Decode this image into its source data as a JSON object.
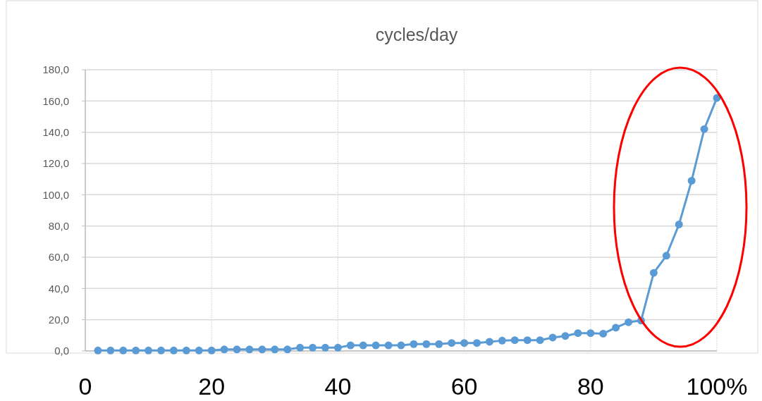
{
  "chart_data": {
    "type": "line",
    "title": "cycles/day",
    "x": [
      2,
      4,
      6,
      8,
      10,
      12,
      14,
      16,
      18,
      20,
      22,
      24,
      26,
      28,
      30,
      32,
      34,
      36,
      38,
      40,
      42,
      44,
      46,
      48,
      50,
      52,
      54,
      56,
      58,
      60,
      62,
      64,
      66,
      68,
      70,
      72,
      74,
      76,
      78,
      80,
      82,
      84,
      86,
      88,
      90,
      92,
      94,
      96,
      98,
      100
    ],
    "series": [
      {
        "color": "#5b9bd5",
        "values": [
          0.3,
          0.3,
          0.3,
          0.3,
          0.3,
          0.3,
          0.3,
          0.3,
          0.3,
          0.3,
          1.0,
          1.0,
          1.0,
          1.0,
          1.0,
          1.0,
          2.1,
          2.1,
          2.1,
          2.1,
          3.6,
          3.6,
          3.6,
          3.6,
          3.6,
          4.4,
          4.4,
          4.4,
          5.1,
          5.1,
          5.1,
          5.9,
          6.6,
          6.9,
          6.9,
          6.9,
          8.6,
          9.6,
          11.4,
          11.4,
          11.1,
          14.9,
          18.4,
          19.5,
          50,
          61,
          81,
          109,
          142,
          162
        ]
      }
    ],
    "xlim": [
      0,
      100
    ],
    "ylim": [
      0,
      180
    ],
    "xticks": [
      0,
      20,
      40,
      60,
      80,
      {
        "value": 100,
        "label": "100%"
      }
    ],
    "yticks": [
      {
        "value": 0,
        "label": "0,0"
      },
      {
        "value": 20,
        "label": "20,0"
      },
      {
        "value": 40,
        "label": "40,0"
      },
      {
        "value": 60,
        "label": "60,0"
      },
      {
        "value": 80,
        "label": "80,0"
      },
      {
        "value": 100,
        "label": "100,0"
      },
      {
        "value": 120,
        "label": "120,0"
      },
      {
        "value": 140,
        "label": "140,0"
      },
      {
        "value": 160,
        "label": "160,0"
      },
      {
        "value": 180,
        "label": "180,0"
      }
    ],
    "grid": true,
    "marker": "circle",
    "line_style": "solid"
  }
}
